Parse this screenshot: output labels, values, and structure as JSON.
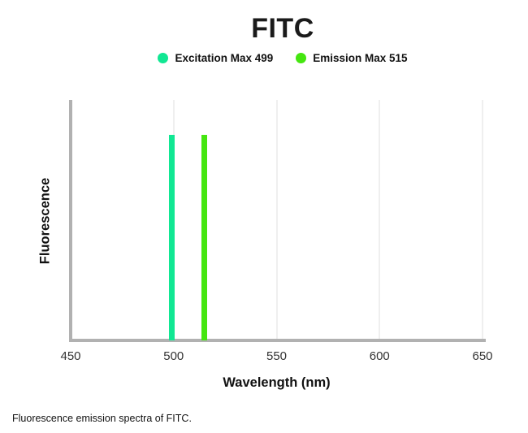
{
  "title": "FITC",
  "legend": {
    "items": [
      {
        "label": "Excitation Max 499",
        "color": "#11e793"
      },
      {
        "label": "Emission Max 515",
        "color": "#45e610"
      }
    ]
  },
  "chart_data": {
    "type": "bar",
    "title": "FITC",
    "xlabel": "Wavelength (nm)",
    "ylabel": "Fluorescence",
    "xlim": [
      450,
      650
    ],
    "ylim": [
      0,
      1
    ],
    "x_ticks": [
      450,
      500,
      550,
      600,
      650
    ],
    "grid": true,
    "legend_position": "top",
    "series": [
      {
        "name": "Excitation Max 499",
        "wavelength_nm": 499,
        "value": 0.855,
        "color": "#11e793"
      },
      {
        "name": "Emission Max 515",
        "wavelength_nm": 515,
        "value": 0.855,
        "color": "#45e610"
      }
    ]
  },
  "caption": "Fluorescence emission spectra of FITC."
}
